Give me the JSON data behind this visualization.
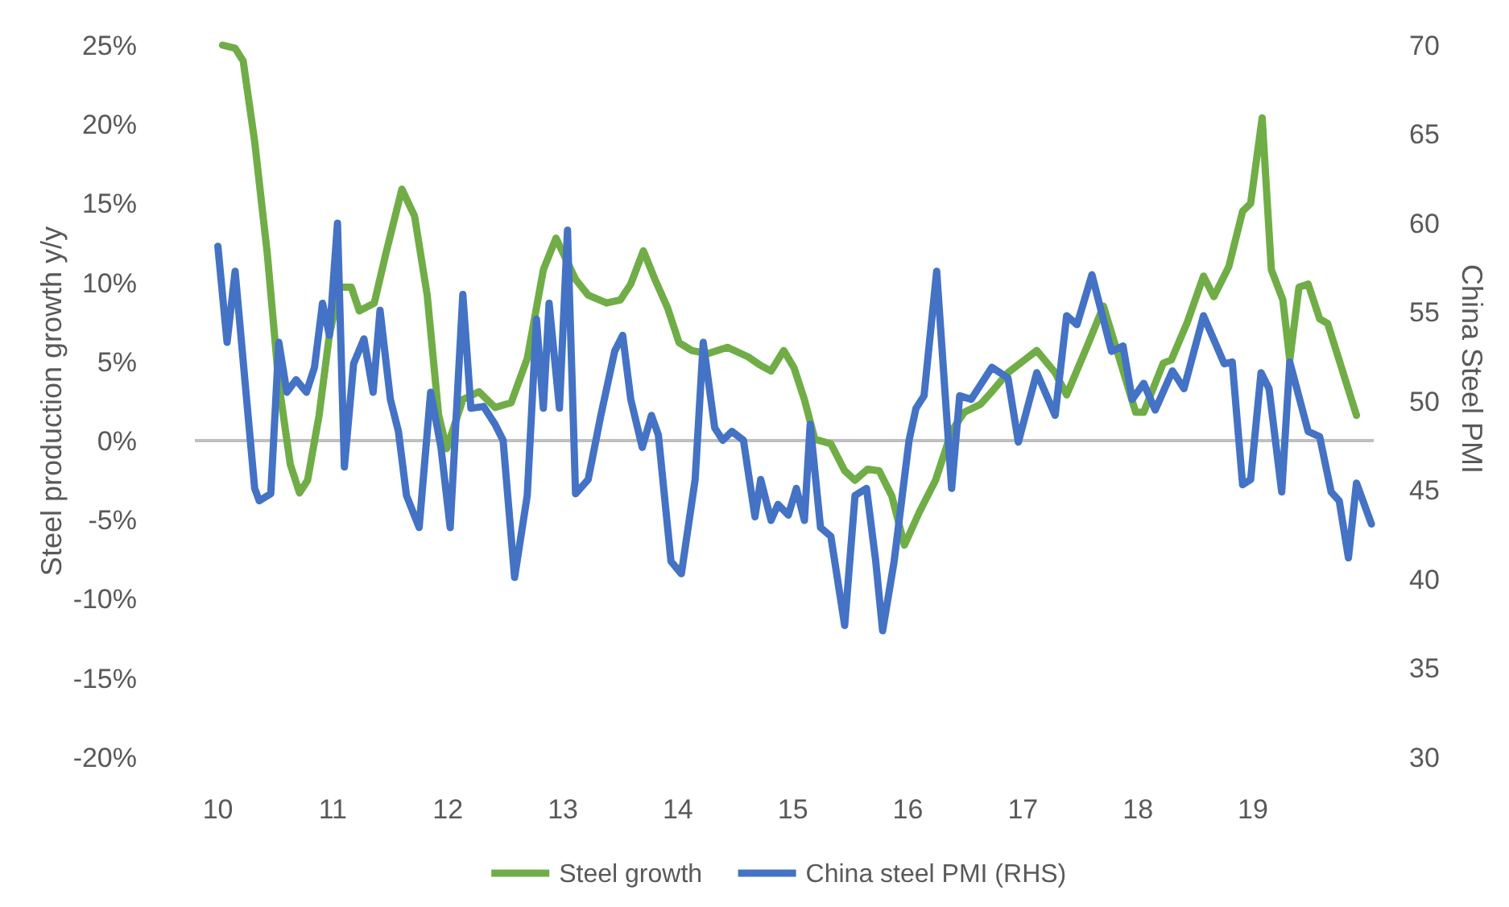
{
  "chart_data": {
    "type": "line",
    "ylabel": "Steel production growth y/y",
    "y2label": "China Steel PMI",
    "xlim": [
      9.8,
      20.05
    ],
    "xticks": [
      10,
      11,
      12,
      13,
      14,
      15,
      16,
      17,
      18,
      19
    ],
    "ylim": [
      -20,
      25
    ],
    "yticks": [
      {
        "value": -20,
        "label": "-20%"
      },
      {
        "value": -15,
        "label": "-15%"
      },
      {
        "value": -10,
        "label": "-10%"
      },
      {
        "value": -5,
        "label": "-5%"
      },
      {
        "value": 0,
        "label": "0%"
      },
      {
        "value": 5,
        "label": "5%"
      },
      {
        "value": 10,
        "label": "10%"
      },
      {
        "value": 15,
        "label": "15%"
      },
      {
        "value": 20,
        "label": "20%"
      },
      {
        "value": 25,
        "label": "25%"
      }
    ],
    "y2lim": [
      30,
      70
    ],
    "y2ticks": [
      30,
      35,
      40,
      45,
      50,
      55,
      60,
      65,
      70
    ],
    "grid": false,
    "legend": "bottom",
    "ref_lines": [
      {
        "axis": "y",
        "value": 0,
        "color": "#bfbfbf"
      }
    ],
    "series": [
      {
        "name": "Steel growth",
        "color": "#70ad47",
        "x": [
          10.04,
          10.15,
          10.22,
          10.32,
          10.43,
          10.53,
          10.63,
          10.71,
          10.78,
          10.88,
          10.97,
          11.06,
          11.16,
          11.23,
          11.36,
          11.46,
          11.6,
          11.71,
          11.82,
          11.92,
          11.99,
          12.13,
          12.27,
          12.41,
          12.55,
          12.69,
          12.83,
          12.94,
          13.11,
          13.22,
          13.38,
          13.5,
          13.59,
          13.7,
          13.8,
          13.91,
          14.01,
          14.12,
          14.26,
          14.43,
          14.61,
          14.71,
          14.81,
          14.92,
          15.01,
          15.1,
          15.19,
          15.33,
          15.45,
          15.54,
          15.65,
          15.75,
          15.86,
          15.97,
          16.1,
          16.24,
          16.38,
          16.49,
          16.63,
          16.73,
          16.87,
          17.12,
          17.28,
          17.38,
          17.56,
          17.7,
          17.98,
          18.05,
          18.22,
          18.29,
          18.43,
          18.57,
          18.66,
          18.79,
          18.91,
          18.98,
          19.08,
          19.16,
          19.26,
          19.32,
          19.4,
          19.48,
          19.58,
          19.65,
          19.9
        ],
        "values": [
          25.0,
          24.8,
          24.0,
          18.9,
          11.8,
          3.6,
          -1.5,
          -3.3,
          -2.5,
          1.6,
          6.7,
          9.7,
          9.7,
          8.2,
          8.7,
          11.8,
          15.9,
          14.2,
          9.2,
          1.6,
          -0.5,
          2.6,
          3.1,
          2.1,
          2.4,
          5.2,
          10.8,
          12.8,
          10.2,
          9.2,
          8.7,
          8.9,
          9.9,
          12.0,
          10.2,
          8.4,
          6.2,
          5.7,
          5.5,
          5.9,
          5.3,
          4.8,
          4.4,
          5.7,
          4.6,
          2.6,
          0.1,
          -0.2,
          -1.9,
          -2.5,
          -1.8,
          -1.9,
          -3.5,
          -6.6,
          -4.5,
          -2.5,
          0.6,
          1.8,
          2.3,
          3.1,
          4.3,
          5.7,
          4.3,
          2.9,
          6.0,
          8.5,
          1.8,
          1.8,
          4.9,
          5.1,
          7.5,
          10.4,
          9.1,
          11.0,
          14.5,
          15.0,
          20.4,
          10.8,
          8.9,
          5.1,
          9.7,
          9.9,
          7.7,
          7.4,
          1.6
        ]
      },
      {
        "name": "China steel PMI (RHS)",
        "color": "#4472c4",
        "axis": "y2",
        "x": [
          10.0,
          10.08,
          10.15,
          10.25,
          10.32,
          10.36,
          10.46,
          10.53,
          10.6,
          10.68,
          10.77,
          10.84,
          10.91,
          10.97,
          11.04,
          11.1,
          11.18,
          11.27,
          11.35,
          11.41,
          11.5,
          11.57,
          11.64,
          11.75,
          11.85,
          11.94,
          12.02,
          12.13,
          12.2,
          12.31,
          12.41,
          12.48,
          12.58,
          12.69,
          12.77,
          12.83,
          12.88,
          12.97,
          13.04,
          13.11,
          13.22,
          13.33,
          13.45,
          13.52,
          13.59,
          13.69,
          13.77,
          13.83,
          13.94,
          14.03,
          14.15,
          14.22,
          14.32,
          14.39,
          14.47,
          14.57,
          14.67,
          14.72,
          14.81,
          14.87,
          14.96,
          15.03,
          15.1,
          15.15,
          15.24,
          15.33,
          15.45,
          15.54,
          15.64,
          15.72,
          15.78,
          15.88,
          16.01,
          16.07,
          16.14,
          16.25,
          16.38,
          16.45,
          16.55,
          16.64,
          16.73,
          16.87,
          16.96,
          17.12,
          17.28,
          17.38,
          17.47,
          17.6,
          17.77,
          17.87,
          17.95,
          18.05,
          18.15,
          18.3,
          18.4,
          18.57,
          18.75,
          18.82,
          18.91,
          18.98,
          19.07,
          19.14,
          19.25,
          19.32,
          19.48,
          19.58,
          19.68,
          19.75,
          19.83,
          19.9,
          20.03
        ],
        "values": [
          58.7,
          53.3,
          57.3,
          50.1,
          45.1,
          44.4,
          44.8,
          53.3,
          50.5,
          51.2,
          50.5,
          51.9,
          55.5,
          53.7,
          60.0,
          46.3,
          52.1,
          53.5,
          50.5,
          55.1,
          50.1,
          48.3,
          44.7,
          42.9,
          50.5,
          47.4,
          42.9,
          56.0,
          49.6,
          49.7,
          48.7,
          47.8,
          40.1,
          44.7,
          54.6,
          49.6,
          55.5,
          49.6,
          59.6,
          44.8,
          45.6,
          49.2,
          52.8,
          53.7,
          50.1,
          47.4,
          49.2,
          48.1,
          41.0,
          40.3,
          45.6,
          53.3,
          48.5,
          47.8,
          48.3,
          47.8,
          43.5,
          45.6,
          43.3,
          44.2,
          43.6,
          45.1,
          43.3,
          48.7,
          42.9,
          42.4,
          37.4,
          44.7,
          45.1,
          41.0,
          37.1,
          41.0,
          47.8,
          49.6,
          50.3,
          57.3,
          45.1,
          50.3,
          50.1,
          51.0,
          51.9,
          51.3,
          47.7,
          51.6,
          49.2,
          54.8,
          54.3,
          57.1,
          52.8,
          53.1,
          50.1,
          51.0,
          49.5,
          51.7,
          50.7,
          54.8,
          52.1,
          52.2,
          45.3,
          45.6,
          51.6,
          50.7,
          44.9,
          52.2,
          48.3,
          48.0,
          44.9,
          44.4,
          41.2,
          45.4,
          43.1
        ]
      }
    ]
  }
}
